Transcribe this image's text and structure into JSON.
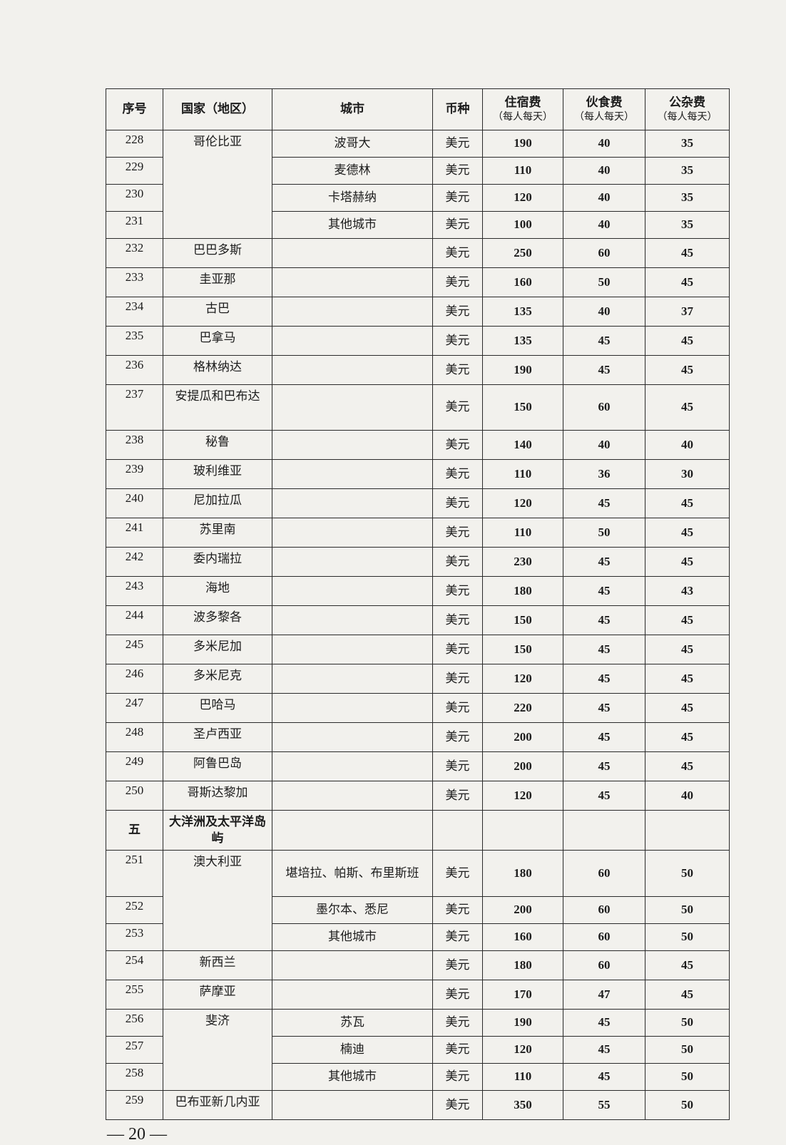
{
  "header": {
    "index": "序号",
    "country": "国家（地区）",
    "city": "城市",
    "currency": "币种",
    "lodging": "住宿费",
    "food": "伙食费",
    "misc": "公杂费",
    "per_day": "（每人每天）"
  },
  "rows": [
    {
      "no": "228",
      "country": "哥伦比亚",
      "city": "波哥大",
      "currency": "美元",
      "lodging": "190",
      "food": "40",
      "misc": "35"
    },
    {
      "no": "229",
      "country": null,
      "city": "麦德林",
      "currency": "美元",
      "lodging": "110",
      "food": "40",
      "misc": "35"
    },
    {
      "no": "230",
      "country": null,
      "city": "卡塔赫纳",
      "currency": "美元",
      "lodging": "120",
      "food": "40",
      "misc": "35"
    },
    {
      "no": "231",
      "country": null,
      "city": "其他城市",
      "currency": "美元",
      "lodging": "100",
      "food": "40",
      "misc": "35"
    },
    {
      "no": "232",
      "country": "巴巴多斯",
      "city": "",
      "currency": "美元",
      "lodging": "250",
      "food": "60",
      "misc": "45"
    },
    {
      "no": "233",
      "country": "圭亚那",
      "city": "",
      "currency": "美元",
      "lodging": "160",
      "food": "50",
      "misc": "45"
    },
    {
      "no": "234",
      "country": "古巴",
      "city": "",
      "currency": "美元",
      "lodging": "135",
      "food": "40",
      "misc": "37"
    },
    {
      "no": "235",
      "country": "巴拿马",
      "city": "",
      "currency": "美元",
      "lodging": "135",
      "food": "45",
      "misc": "45"
    },
    {
      "no": "236",
      "country": "格林纳达",
      "city": "",
      "currency": "美元",
      "lodging": "190",
      "food": "45",
      "misc": "45"
    },
    {
      "no": "237",
      "country": "安提瓜和巴布达",
      "city": "",
      "currency": "美元",
      "lodging": "150",
      "food": "60",
      "misc": "45",
      "tall": true
    },
    {
      "no": "238",
      "country": "秘鲁",
      "city": "",
      "currency": "美元",
      "lodging": "140",
      "food": "40",
      "misc": "40"
    },
    {
      "no": "239",
      "country": "玻利维亚",
      "city": "",
      "currency": "美元",
      "lodging": "110",
      "food": "36",
      "misc": "30"
    },
    {
      "no": "240",
      "country": "尼加拉瓜",
      "city": "",
      "currency": "美元",
      "lodging": "120",
      "food": "45",
      "misc": "45"
    },
    {
      "no": "241",
      "country": "苏里南",
      "city": "",
      "currency": "美元",
      "lodging": "110",
      "food": "50",
      "misc": "45"
    },
    {
      "no": "242",
      "country": "委内瑞拉",
      "city": "",
      "currency": "美元",
      "lodging": "230",
      "food": "45",
      "misc": "45"
    },
    {
      "no": "243",
      "country": "海地",
      "city": "",
      "currency": "美元",
      "lodging": "180",
      "food": "45",
      "misc": "43"
    },
    {
      "no": "244",
      "country": "波多黎各",
      "city": "",
      "currency": "美元",
      "lodging": "150",
      "food": "45",
      "misc": "45"
    },
    {
      "no": "245",
      "country": "多米尼加",
      "city": "",
      "currency": "美元",
      "lodging": "150",
      "food": "45",
      "misc": "45"
    },
    {
      "no": "246",
      "country": "多米尼克",
      "city": "",
      "currency": "美元",
      "lodging": "120",
      "food": "45",
      "misc": "45"
    },
    {
      "no": "247",
      "country": "巴哈马",
      "city": "",
      "currency": "美元",
      "lodging": "220",
      "food": "45",
      "misc": "45"
    },
    {
      "no": "248",
      "country": "圣卢西亚",
      "city": "",
      "currency": "美元",
      "lodging": "200",
      "food": "45",
      "misc": "45"
    },
    {
      "no": "249",
      "country": "阿鲁巴岛",
      "city": "",
      "currency": "美元",
      "lodging": "200",
      "food": "45",
      "misc": "45"
    },
    {
      "no": "250",
      "country": "哥斯达黎加",
      "city": "",
      "currency": "美元",
      "lodging": "120",
      "food": "45",
      "misc": "40"
    },
    {
      "no": "五",
      "country": "大洋洲及太平洋岛屿",
      "city": "",
      "currency": "",
      "lodging": "",
      "food": "",
      "misc": "",
      "section": true
    },
    {
      "no": "251",
      "country": "澳大利亚",
      "city": "堪培拉、帕斯、布里斯班",
      "currency": "美元",
      "lodging": "180",
      "food": "60",
      "misc": "50",
      "city2": true
    },
    {
      "no": "252",
      "country": null,
      "city": "墨尔本、悉尼",
      "currency": "美元",
      "lodging": "200",
      "food": "60",
      "misc": "50"
    },
    {
      "no": "253",
      "country": null,
      "city": "其他城市",
      "currency": "美元",
      "lodging": "160",
      "food": "60",
      "misc": "50"
    },
    {
      "no": "254",
      "country": "新西兰",
      "city": "",
      "currency": "美元",
      "lodging": "180",
      "food": "60",
      "misc": "45"
    },
    {
      "no": "255",
      "country": "萨摩亚",
      "city": "",
      "currency": "美元",
      "lodging": "170",
      "food": "47",
      "misc": "45"
    },
    {
      "no": "256",
      "country": "斐济",
      "city": "苏瓦",
      "currency": "美元",
      "lodging": "190",
      "food": "45",
      "misc": "50"
    },
    {
      "no": "257",
      "country": null,
      "city": "楠迪",
      "currency": "美元",
      "lodging": "120",
      "food": "45",
      "misc": "50"
    },
    {
      "no": "258",
      "country": null,
      "city": "其他城市",
      "currency": "美元",
      "lodging": "110",
      "food": "45",
      "misc": "50"
    },
    {
      "no": "259",
      "country": "巴布亚新几内亚",
      "city": "",
      "currency": "美元",
      "lodging": "350",
      "food": "55",
      "misc": "50"
    }
  ],
  "footer": {
    "page_number": "— 20 —"
  }
}
